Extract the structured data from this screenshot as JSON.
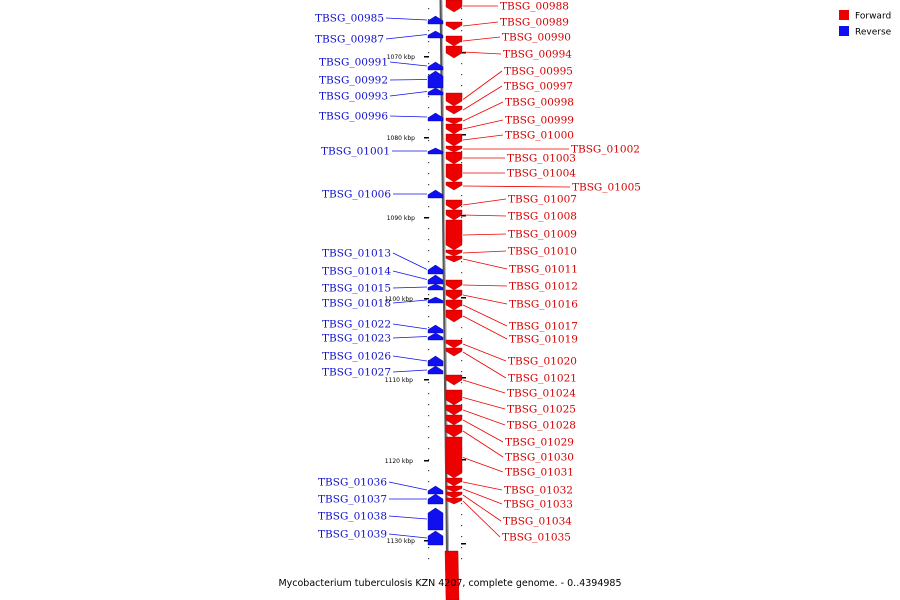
{
  "caption": "Mycobacterium tuberculosis KZN 4207, complete genome. - 0..4394985",
  "legend": [
    {
      "label": "Forward",
      "color": "#ee0000"
    },
    {
      "label": "Reverse",
      "color": "#1010ee"
    }
  ],
  "colors": {
    "forward": "#ee0000",
    "reverse": "#1010ee",
    "forward_label": "#d80000",
    "reverse_label": "#1010d0"
  },
  "ticks": [
    "1070 kbp",
    "1080 kbp",
    "1090 kbp",
    "1100 kbp",
    "1110 kbp",
    "1120 kbp",
    "1130 kbp"
  ],
  "reverse_genes": [
    "TBSG_00985",
    "TBSG_00987",
    "TBSG_00991",
    "TBSG_00992",
    "TBSG_00993",
    "TBSG_00996",
    "TBSG_01001",
    "TBSG_01006",
    "TBSG_01013",
    "TBSG_01014",
    "TBSG_01015",
    "TBSG_01018",
    "TBSG_01022",
    "TBSG_01023",
    "TBSG_01026",
    "TBSG_01027",
    "TBSG_01036",
    "TBSG_01037",
    "TBSG_01038",
    "TBSG_01039"
  ],
  "forward_genes": [
    "TBSG_00988",
    "TBSG_00989",
    "TBSG_00990",
    "TBSG_00994",
    "TBSG_00995",
    "TBSG_00997",
    "TBSG_00998",
    "TBSG_00999",
    "TBSG_01000",
    "TBSG_01002",
    "TBSG_01003",
    "TBSG_01004",
    "TBSG_01005",
    "TBSG_01007",
    "TBSG_01008",
    "TBSG_01009",
    "TBSG_01010",
    "TBSG_01011",
    "TBSG_01012",
    "TBSG_01016",
    "TBSG_01017",
    "TBSG_01019",
    "TBSG_01020",
    "TBSG_01021",
    "TBSG_01024",
    "TBSG_01025",
    "TBSG_01028",
    "TBSG_01029",
    "TBSG_01030",
    "TBSG_01031",
    "TBSG_01032",
    "TBSG_01033",
    "TBSG_01034",
    "TBSG_01035"
  ]
}
